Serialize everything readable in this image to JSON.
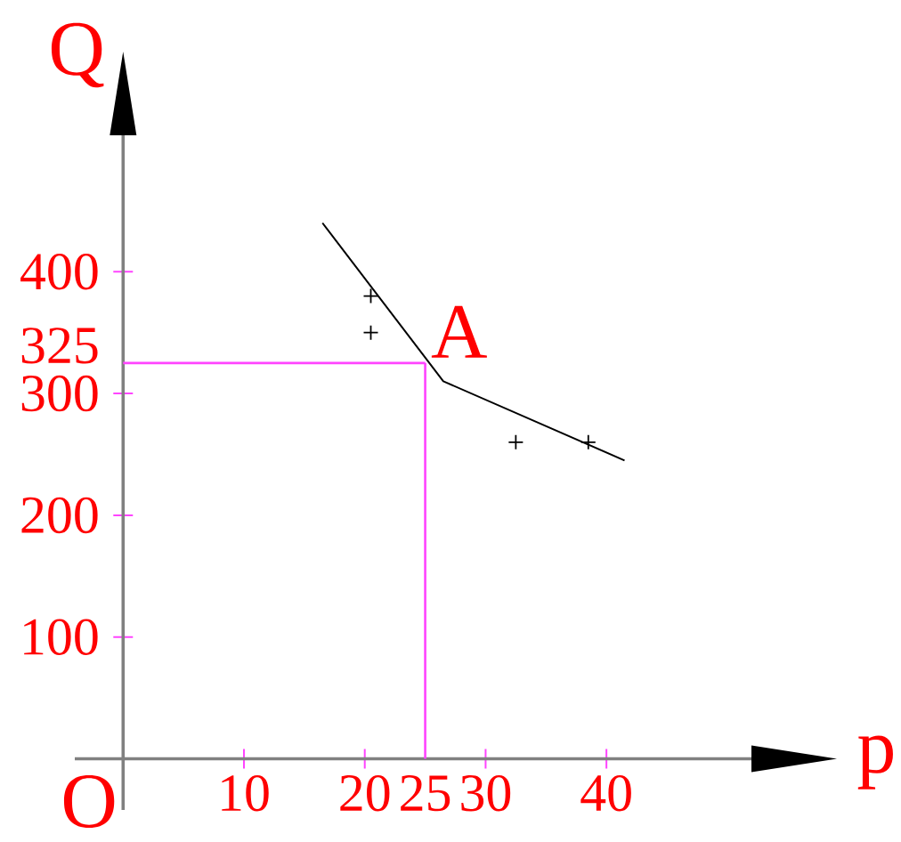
{
  "chart_data": {
    "type": "line",
    "xlabel": "p",
    "ylabel": "Q",
    "xlim": [
      -4,
      52
    ],
    "ylim": [
      -42,
      512
    ],
    "xticks": [
      10,
      20,
      30,
      40
    ],
    "yticks": [
      100,
      200,
      300,
      400
    ],
    "series": [
      {
        "color": "#000000",
        "x": [
          16.5,
          26.5,
          41.5
        ],
        "values": [
          440,
          310,
          245
        ]
      },
      {
        "type": "scatter",
        "color": "#000000",
        "marker": "cross",
        "x": [
          20.5,
          20.5,
          32.5,
          38.5
        ],
        "values": [
          380,
          350,
          260,
          260
        ]
      }
    ],
    "ref_lines": [
      {
        "axis": "x",
        "value": 25,
        "label": "25",
        "color": "#ff44ff"
      },
      {
        "axis": "y",
        "value": 325,
        "label": "325",
        "color": "#ff44ff"
      }
    ],
    "annotations": [
      {
        "text": "A",
        "x": 25,
        "y": 325
      },
      "O"
    ]
  }
}
